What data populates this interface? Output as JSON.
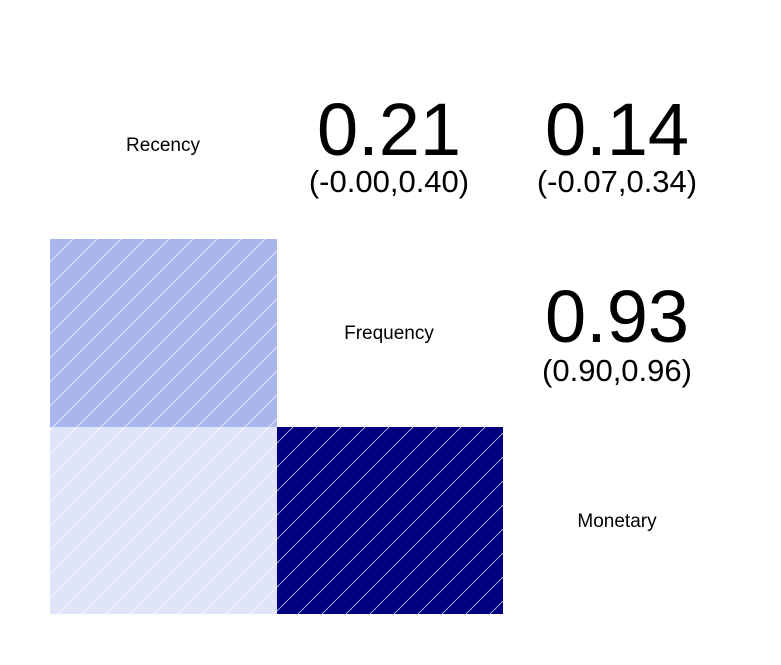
{
  "chart_data": {
    "type": "heatmap",
    "variables": [
      "Recency",
      "Frequency",
      "Monetary"
    ],
    "correlations": [
      {
        "row": "Recency",
        "col": "Frequency",
        "estimate": "0.21",
        "ci": "(-0.00,0.40)",
        "value": 0.21,
        "fill": "#A9B6ED"
      },
      {
        "row": "Recency",
        "col": "Monetary",
        "estimate": "0.14",
        "ci": "(-0.07,0.34)",
        "value": 0.14,
        "fill": "#DFE4F8"
      },
      {
        "row": "Frequency",
        "col": "Monetary",
        "estimate": "0.93",
        "ci": "(0.90,0.96)",
        "value": 0.93,
        "fill": "#000080"
      }
    ],
    "lower_triangle_shading": "hatched",
    "upper_triangle": "numbers"
  }
}
